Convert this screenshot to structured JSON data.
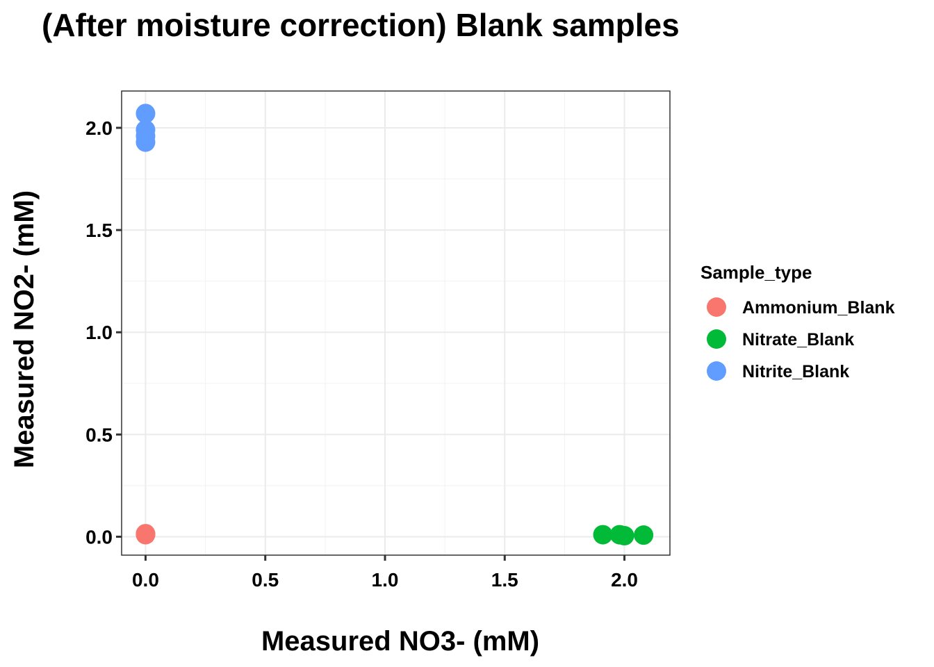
{
  "chart_data": {
    "type": "scatter",
    "title": "(After moisture correction) Blank samples",
    "xlabel": "Measured NO3- (mM)",
    "ylabel": "Measured NO2- (mM)",
    "xlim": [
      -0.1,
      2.19
    ],
    "ylim": [
      -0.09,
      2.18
    ],
    "xticks": [
      "0.0",
      "0.5",
      "1.0",
      "1.5",
      "2.0"
    ],
    "yticks": [
      "0.0",
      "0.5",
      "1.0",
      "1.5",
      "2.0"
    ],
    "grid": true,
    "legend": {
      "title": "Sample_type",
      "position": "right"
    },
    "series": [
      {
        "name": "Ammonium_Blank",
        "color": "#F8766D",
        "points": [
          [
            0.0,
            0.01
          ],
          [
            0.0,
            0.015
          ],
          [
            0.0,
            0.012
          ]
        ]
      },
      {
        "name": "Nitrate_Blank",
        "color": "#00BA38",
        "points": [
          [
            1.91,
            0.01
          ],
          [
            1.98,
            0.01
          ],
          [
            2.0,
            0.005
          ],
          [
            2.08,
            0.008
          ]
        ]
      },
      {
        "name": "Nitrite_Blank",
        "color": "#619CFF",
        "points": [
          [
            0.0,
            2.07
          ],
          [
            0.0,
            1.99
          ],
          [
            0.0,
            1.96
          ],
          [
            0.0,
            1.93
          ]
        ]
      }
    ]
  }
}
